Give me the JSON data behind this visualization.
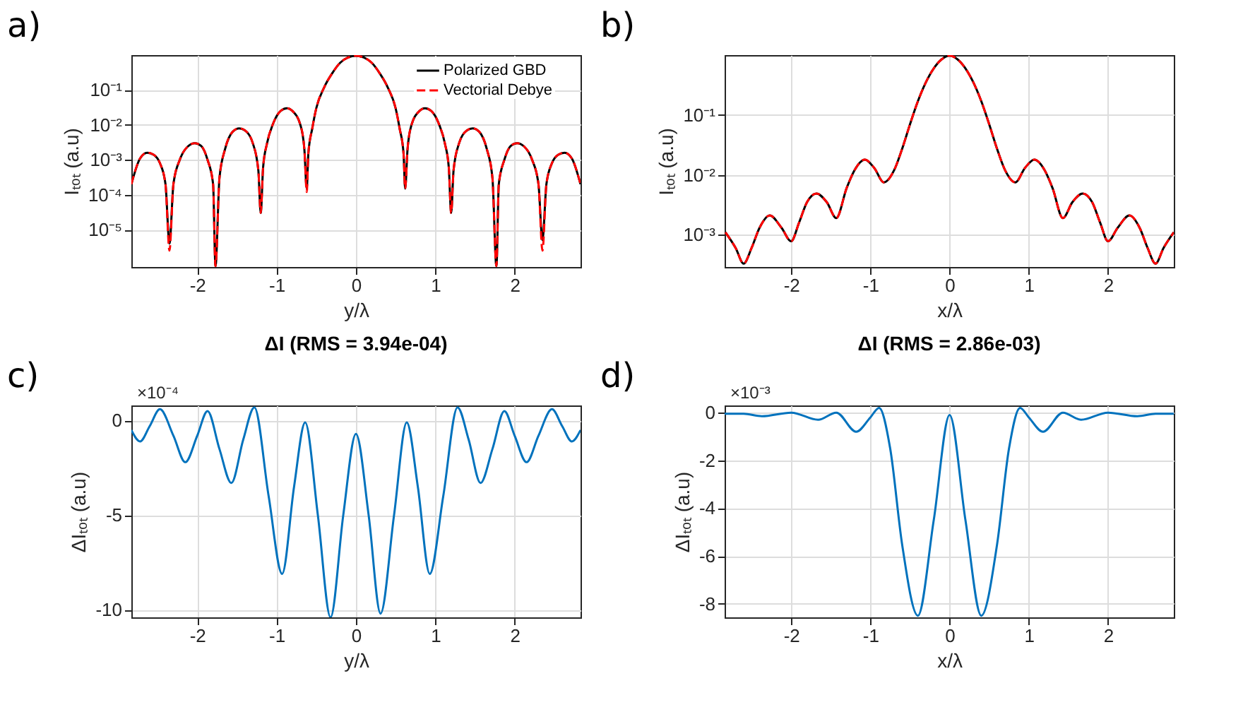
{
  "chart_data": [
    {
      "type": "line",
      "xlabel": "y/λ",
      "ylabel": "Iₜₒₜ (a.u)",
      "log": "y",
      "grid": true,
      "legend": "top right",
      "annotations": [
        "a)"
      ],
      "xlim": [
        -2.83,
        2.83
      ],
      "xticks": [
        -2,
        -1,
        0,
        1,
        2
      ],
      "ylim": [
        8.5e-07,
        1
      ],
      "yticks": [
        {
          "value": 1e-05,
          "label": "10⁻⁵"
        },
        {
          "value": 0.0001,
          "label": "10⁻⁴"
        },
        {
          "value": 0.001,
          "label": "10⁻³"
        },
        {
          "value": 0.01,
          "label": "10⁻²"
        },
        {
          "value": 0.1,
          "label": "10⁻¹"
        }
      ],
      "x": [
        -2.83,
        -2.72,
        -2.63,
        -2.55,
        -2.47,
        -2.4,
        -2.35,
        -2.3,
        -2.22,
        -2.12,
        -2.03,
        -1.95,
        -1.87,
        -1.8,
        -1.77,
        -1.72,
        -1.65,
        -1.55,
        -1.47,
        -1.4,
        -1.3,
        -1.23,
        -1.2,
        -1.17,
        -1.12,
        -1.05,
        -0.95,
        -0.87,
        -0.8,
        -0.7,
        -0.65,
        -0.62,
        -0.6,
        -0.55,
        -0.5,
        -0.4,
        -0.3,
        -0.2,
        -0.1,
        0,
        0.1,
        0.2,
        0.3,
        0.4,
        0.5,
        0.55,
        0.6,
        0.62,
        0.65,
        0.7,
        0.8,
        0.87,
        0.95,
        1.05,
        1.12,
        1.17,
        1.2,
        1.23,
        1.3,
        1.4,
        1.47,
        1.55,
        1.65,
        1.72,
        1.77,
        1.8,
        1.87,
        1.95,
        2.03,
        2.12,
        2.22,
        2.3,
        2.35,
        2.4,
        2.47,
        2.55,
        2.63,
        2.72,
        2.83
      ],
      "series": [
        {
          "name": "Polarized GBD",
          "color": "#000000",
          "line_style": "solid",
          "values": [
            0.0002,
            0.0011,
            0.0016,
            0.0014,
            0.0008,
            0.0002,
            4e-06,
            0.0002,
            0.001,
            0.0024,
            0.003,
            0.0025,
            0.001,
            0.0002,
            9e-07,
            0.0003,
            0.002,
            0.0065,
            0.008,
            0.007,
            0.003,
            0.0005,
            3e-05,
            0.0006,
            0.003,
            0.01,
            0.025,
            0.03,
            0.025,
            0.01,
            0.002,
            0.00015,
            0.0015,
            0.008,
            0.03,
            0.12,
            0.3,
            0.6,
            0.85,
            0.95,
            0.85,
            0.6,
            0.3,
            0.12,
            0.03,
            0.008,
            0.0015,
            0.00015,
            0.002,
            0.01,
            0.025,
            0.03,
            0.025,
            0.01,
            0.003,
            0.0006,
            3e-05,
            0.0005,
            0.003,
            0.007,
            0.008,
            0.0065,
            0.002,
            0.0003,
            9e-07,
            0.0002,
            0.001,
            0.0025,
            0.003,
            0.0024,
            0.001,
            0.0002,
            5e-06,
            0.0002,
            0.0008,
            0.0014,
            0.0016,
            0.0011,
            0.0002
          ]
        },
        {
          "name": "Vectorial Debye",
          "color": "#ff0000",
          "line_style": "dashed",
          "values": [
            0.0002,
            0.0011,
            0.0016,
            0.0014,
            0.0008,
            0.0002,
            2.5e-06,
            0.0002,
            0.001,
            0.0024,
            0.003,
            0.0025,
            0.001,
            0.0002,
            9e-07,
            0.0003,
            0.002,
            0.0065,
            0.008,
            0.007,
            0.003,
            0.0005,
            3e-05,
            0.0006,
            0.003,
            0.01,
            0.025,
            0.03,
            0.025,
            0.01,
            0.002,
            0.00012,
            0.0015,
            0.008,
            0.03,
            0.12,
            0.3,
            0.6,
            0.85,
            0.95,
            0.85,
            0.6,
            0.3,
            0.12,
            0.03,
            0.008,
            0.0015,
            0.00015,
            0.002,
            0.01,
            0.025,
            0.03,
            0.025,
            0.01,
            0.003,
            0.0006,
            3e-05,
            0.0005,
            0.003,
            0.007,
            0.008,
            0.0065,
            0.002,
            0.0003,
            9e-07,
            0.0002,
            0.001,
            0.0025,
            0.003,
            0.0024,
            0.001,
            0.0002,
            2.5e-06,
            0.0002,
            0.0008,
            0.0014,
            0.0016,
            0.0011,
            0.0002
          ]
        }
      ]
    },
    {
      "type": "line",
      "xlabel": "x/λ",
      "ylabel": "Iₜₒₜ (a.u)",
      "log": "y",
      "grid": true,
      "legend": "top right",
      "annotations": [
        "b)"
      ],
      "xlim": [
        -2.84,
        2.83
      ],
      "xticks": [
        -2,
        -1,
        0,
        1,
        2
      ],
      "ylim": [
        0.00029,
        1
      ],
      "yticks": [
        {
          "value": 0.001,
          "label": "10⁻³"
        },
        {
          "value": 0.01,
          "label": "10⁻²"
        },
        {
          "value": 0.1,
          "label": "10⁻¹"
        }
      ],
      "x": [
        -2.83,
        -2.7,
        -2.6,
        -2.5,
        -2.4,
        -2.27,
        -2.12,
        -2.0,
        -1.9,
        -1.8,
        -1.68,
        -1.55,
        -1.43,
        -1.3,
        -1.2,
        -1.07,
        -0.95,
        -0.83,
        -0.7,
        -0.6,
        -0.5,
        -0.4,
        -0.3,
        -0.2,
        -0.1,
        0,
        0.1,
        0.2,
        0.3,
        0.4,
        0.5,
        0.6,
        0.7,
        0.83,
        0.95,
        1.07,
        1.2,
        1.3,
        1.43,
        1.55,
        1.68,
        1.8,
        1.9,
        2.0,
        2.12,
        2.27,
        2.4,
        2.5,
        2.6,
        2.7,
        2.83
      ],
      "series": [
        {
          "name": "Polarized GBD",
          "color": "#000000",
          "line_style": "solid",
          "values": [
            0.0011,
            0.0006,
            0.00033,
            0.0006,
            0.0013,
            0.0021,
            0.0013,
            0.00078,
            0.0016,
            0.0035,
            0.0049,
            0.0035,
            0.0019,
            0.006,
            0.012,
            0.018,
            0.013,
            0.0075,
            0.012,
            0.027,
            0.07,
            0.17,
            0.35,
            0.6,
            0.85,
            0.98,
            0.85,
            0.6,
            0.35,
            0.17,
            0.07,
            0.027,
            0.012,
            0.0075,
            0.013,
            0.018,
            0.012,
            0.006,
            0.0019,
            0.0035,
            0.0049,
            0.0035,
            0.0016,
            0.00078,
            0.0013,
            0.0021,
            0.0013,
            0.0006,
            0.00033,
            0.0006,
            0.0011
          ]
        },
        {
          "name": "Vectorial Debye",
          "color": "#ff0000",
          "line_style": "dashed",
          "values": [
            0.0011,
            0.0006,
            0.00033,
            0.0006,
            0.0013,
            0.0021,
            0.0013,
            0.00078,
            0.0016,
            0.0035,
            0.0049,
            0.0035,
            0.0019,
            0.006,
            0.012,
            0.018,
            0.013,
            0.0075,
            0.012,
            0.027,
            0.07,
            0.17,
            0.35,
            0.6,
            0.85,
            0.98,
            0.85,
            0.6,
            0.35,
            0.17,
            0.07,
            0.027,
            0.012,
            0.0075,
            0.013,
            0.018,
            0.012,
            0.006,
            0.0019,
            0.0035,
            0.0049,
            0.0035,
            0.0016,
            0.00078,
            0.0013,
            0.0021,
            0.0013,
            0.0006,
            0.00033,
            0.0006,
            0.0011
          ]
        }
      ]
    },
    {
      "type": "line",
      "title": "ΔI (RMS = 3.94e-04)",
      "xlabel": "y/λ",
      "ylabel": "ΔIₜₒₜ (a.u)",
      "grid": true,
      "annotations": [
        "c)",
        "×10⁻⁴"
      ],
      "xlim": [
        -2.83,
        2.83
      ],
      "xticks": [
        -2,
        -1,
        0,
        1,
        2
      ],
      "ylim": [
        -10.4,
        0.8
      ],
      "yticks": [
        -10,
        -5,
        0
      ],
      "x": [
        -2.83,
        -2.72,
        -2.6,
        -2.47,
        -2.3,
        -2.15,
        -2.0,
        -1.87,
        -1.72,
        -1.57,
        -1.42,
        -1.28,
        -1.1,
        -0.93,
        -0.78,
        -0.64,
        -0.48,
        -0.32,
        -0.16,
        0,
        0.16,
        0.31,
        0.48,
        0.64,
        0.78,
        0.93,
        1.1,
        1.28,
        1.42,
        1.57,
        1.72,
        1.87,
        2.0,
        2.15,
        2.3,
        2.47,
        2.6,
        2.72,
        2.83
      ],
      "series": [
        {
          "color": "#0072bd",
          "values": [
            -0.5,
            -1.1,
            -0.3,
            0.6,
            -0.8,
            -2.2,
            -0.8,
            0.5,
            -1.5,
            -3.3,
            -1.0,
            0.7,
            -4,
            -8.1,
            -3.5,
            -0.1,
            -5,
            -10.4,
            -5,
            -0.7,
            -5,
            -10.2,
            -5,
            -0.1,
            -3.5,
            -8.1,
            -4,
            0.7,
            -1.0,
            -3.3,
            -1.5,
            0.5,
            -0.8,
            -2.2,
            -0.8,
            0.6,
            -0.3,
            -1.1,
            -0.5
          ]
        }
      ]
    },
    {
      "type": "line",
      "title": "ΔI (RMS = 2.86e-03)",
      "xlabel": "x/λ",
      "ylabel": "ΔIₜₒₜ (a.u)",
      "grid": true,
      "annotations": [
        "d)",
        "×10⁻³"
      ],
      "xlim": [
        -2.84,
        2.83
      ],
      "xticks": [
        -2,
        -1,
        0,
        1,
        2
      ],
      "ylim": [
        -8.57,
        0.3
      ],
      "yticks": [
        -8,
        -6,
        -4,
        -2,
        0
      ],
      "x": [
        -2.84,
        -2.6,
        -2.37,
        -2.0,
        -1.66,
        -1.43,
        -1.18,
        -1.0,
        -0.89,
        -0.75,
        -0.6,
        -0.4,
        -0.2,
        0,
        0.2,
        0.4,
        0.6,
        0.75,
        0.89,
        1.0,
        1.18,
        1.43,
        1.66,
        2.0,
        2.37,
        2.6,
        2.83
      ],
      "series": [
        {
          "color": "#0072bd",
          "values": [
            -0.05,
            -0.05,
            -0.15,
            0,
            -0.3,
            0,
            -0.8,
            -0.2,
            0.2,
            -1.5,
            -5.5,
            -8.5,
            -4.5,
            -0.1,
            -4.5,
            -8.5,
            -5.5,
            -1.5,
            0.2,
            -0.2,
            -0.8,
            0,
            -0.3,
            0,
            -0.15,
            -0.05,
            -0.05
          ]
        }
      ]
    }
  ]
}
